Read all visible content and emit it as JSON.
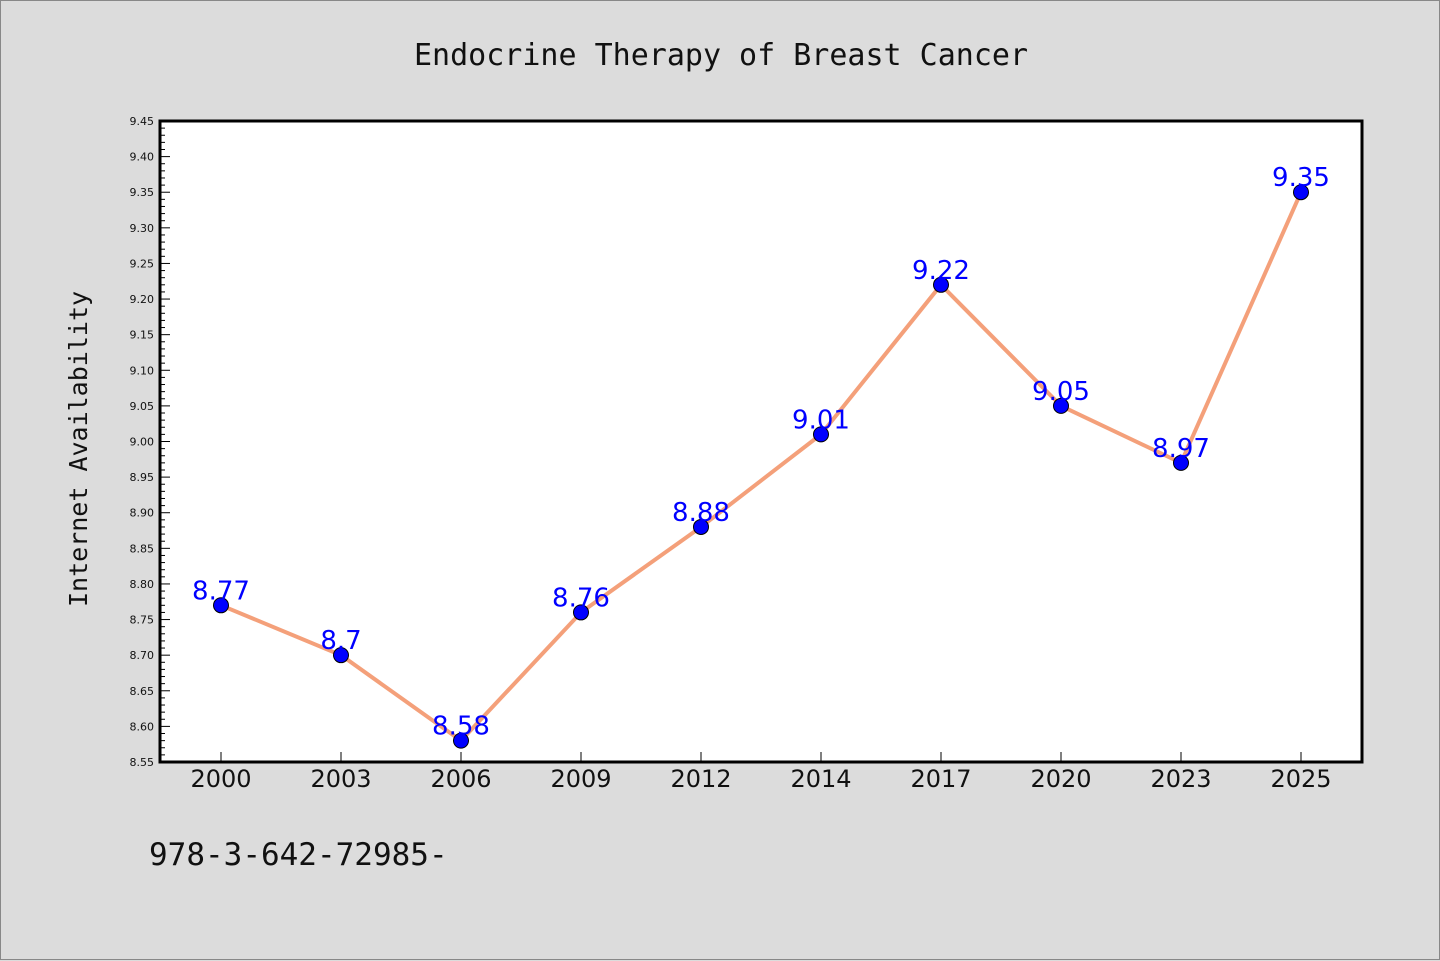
{
  "chart_data": {
    "type": "line",
    "title": "Endocrine Therapy of Breast Cancer",
    "xlabel": "",
    "ylabel": "Internet Availability",
    "categories": [
      "2000",
      "2003",
      "2006",
      "2009",
      "2012",
      "2014",
      "2017",
      "2020",
      "2023",
      "2025"
    ],
    "series": [
      {
        "values": [
          8.77,
          8.7,
          8.58,
          8.76,
          8.88,
          9.01,
          9.22,
          9.05,
          8.97,
          9.35
        ],
        "data_labels": [
          "8.77",
          "8.7",
          "8.58",
          "8.76",
          "8.88",
          "9.01",
          "9.22",
          "9.05",
          "8.97",
          "9.35"
        ],
        "line_color": "#f4a07a",
        "marker_color": "#0000ff"
      }
    ],
    "ylim": [
      8.55,
      9.45
    ],
    "yticks": [
      "8.55",
      "8.60",
      "8.65",
      "8.70",
      "8.75",
      "8.80",
      "8.85",
      "8.90",
      "8.95",
      "9.00",
      "9.05",
      "9.10",
      "9.15",
      "9.20",
      "9.25",
      "9.30",
      "9.35",
      "9.40",
      "9.45"
    ],
    "grid": false,
    "legend": "none"
  },
  "footer": {
    "text": "978-3-642-72985-"
  },
  "colors": {
    "background": "#dcdcdc",
    "plot_background": "#ffffff",
    "label_color": "#0000ff"
  }
}
